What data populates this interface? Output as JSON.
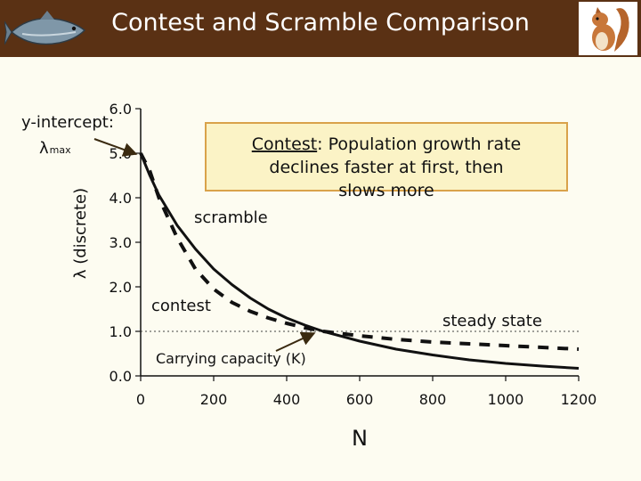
{
  "title": "Contest and Scramble Comparison",
  "icons": [
    "salmon-fish-icon",
    "squirrel-icon"
  ],
  "colors": {
    "title_bar": "#5a3114",
    "page_bg": "#fdfcf1",
    "callout_bg": "#fbf3c6",
    "callout_border": "#d9a24a",
    "arrow": "#3a2a10"
  },
  "annotations": {
    "y_intercept_label": "y-intercept:",
    "lambda_max": "λ",
    "lambda_max_sub": "max",
    "contest_callout": "Contest: Population growth rate declines faster at first, then slows more",
    "contest_callout_head": "Contest",
    "contest_callout_line1_rest": ": Population growth rate",
    "contest_callout_line2": "declines faster at first, then",
    "contest_callout_line3": "slows more",
    "scramble_label": "scramble",
    "contest_label": "contest",
    "steady_state_label": "steady state",
    "carrying_capacity_label": "Carrying capacity (K)"
  },
  "chart_data": {
    "type": "line",
    "xlabel": "N",
    "ylabel": "λ (discrete)",
    "xlim": [
      0,
      1200
    ],
    "ylim": [
      0,
      6
    ],
    "xticks": [
      0,
      200,
      400,
      600,
      800,
      1000,
      1200
    ],
    "yticks": [
      0,
      1,
      2,
      3,
      4,
      5,
      6
    ],
    "xtick_labels": [
      "0",
      "200",
      "400",
      "600",
      "800",
      "1000",
      "1200"
    ],
    "ytick_labels": [
      "0.0",
      "1.0",
      "2.0",
      "3.0",
      "4.0",
      "5.0",
      "6.0"
    ],
    "grid": false,
    "reference_line": {
      "y": 1.0,
      "style": "dotted",
      "label": "steady state"
    },
    "carrying_capacity": {
      "x": 500,
      "y": 1.0
    },
    "series": [
      {
        "name": "contest",
        "style": "solid",
        "x": [
          0,
          25,
          50,
          100,
          150,
          200,
          250,
          300,
          350,
          400,
          450,
          500,
          600,
          700,
          800,
          900,
          1000,
          1100,
          1200
        ],
        "y": [
          5.0,
          4.5,
          4.06,
          3.38,
          2.85,
          2.4,
          2.05,
          1.75,
          1.5,
          1.3,
          1.14,
          1.0,
          0.78,
          0.6,
          0.47,
          0.36,
          0.28,
          0.22,
          0.17
        ]
      },
      {
        "name": "scramble",
        "style": "dashed",
        "x": [
          0,
          25,
          50,
          100,
          150,
          200,
          250,
          300,
          350,
          400,
          450,
          500,
          550,
          600,
          700,
          800,
          900,
          1000,
          1100,
          1200
        ],
        "y": [
          5.0,
          4.6,
          4.0,
          3.1,
          2.4,
          1.95,
          1.65,
          1.45,
          1.3,
          1.18,
          1.08,
          1.0,
          0.95,
          0.9,
          0.82,
          0.76,
          0.72,
          0.68,
          0.64,
          0.6
        ]
      }
    ]
  }
}
